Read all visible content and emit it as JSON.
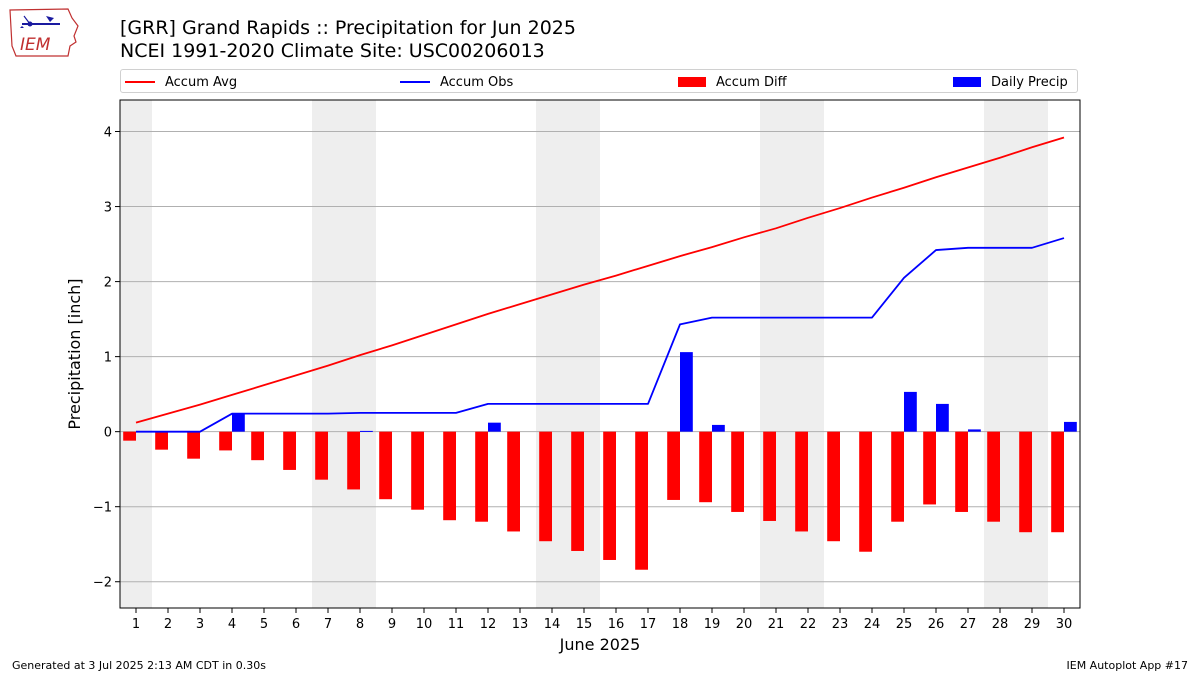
{
  "header": {
    "title": "[GRR] Grand Rapids :: Precipitation for Jun 2025",
    "subtitle": "NCEI 1991-2020 Climate Site: USC00206013"
  },
  "logo": {
    "text": "IEM",
    "icon": "iem-iowa-logo"
  },
  "footer": {
    "generated": "Generated at 3 Jul 2025 2:13 AM CDT in 0.30s",
    "app": "IEM Autoplot App #17"
  },
  "colors": {
    "avg": "#ff0000",
    "obs": "#0000ff",
    "diff": "#ff0000",
    "daily": "#0000ff",
    "weekend_shade": "#eeeeee",
    "grid": "#b0b0b0"
  },
  "chart_data": {
    "type": "bar",
    "xlabel": "June 2025",
    "ylabel": "Precipitation [inch]",
    "xlim": [
      0.5,
      30.5
    ],
    "ylim": [
      -2.35,
      4.42
    ],
    "yticks": [
      -2,
      -1,
      0,
      1,
      2,
      3,
      4
    ],
    "ytick_labels": [
      "−2",
      "−1",
      "0",
      "1",
      "2",
      "3",
      "4"
    ],
    "grid": true,
    "legend_position": "top",
    "days": [
      1,
      2,
      3,
      4,
      5,
      6,
      7,
      8,
      9,
      10,
      11,
      12,
      13,
      14,
      15,
      16,
      17,
      18,
      19,
      20,
      21,
      22,
      23,
      24,
      25,
      26,
      27,
      28,
      29,
      30
    ],
    "weekend_days": [
      1,
      7,
      8,
      14,
      15,
      21,
      22,
      28,
      29
    ],
    "legend": [
      "Accum Avg",
      "Accum Obs",
      "Accum Diff",
      "Daily Precip"
    ],
    "series": [
      {
        "name": "Accum Avg",
        "type": "line",
        "values": [
          0.12,
          0.24,
          0.36,
          0.49,
          0.62,
          0.75,
          0.88,
          1.02,
          1.15,
          1.29,
          1.43,
          1.57,
          1.7,
          1.83,
          1.96,
          2.08,
          2.21,
          2.34,
          2.46,
          2.59,
          2.71,
          2.85,
          2.98,
          3.12,
          3.25,
          3.39,
          3.52,
          3.65,
          3.79,
          3.92
        ]
      },
      {
        "name": "Accum Obs",
        "type": "line",
        "values": [
          0.0,
          0.0,
          0.0,
          0.24,
          0.24,
          0.24,
          0.24,
          0.25,
          0.25,
          0.25,
          0.25,
          0.37,
          0.37,
          0.37,
          0.37,
          0.37,
          0.37,
          1.43,
          1.52,
          1.52,
          1.52,
          1.52,
          1.52,
          1.52,
          2.05,
          2.42,
          2.45,
          2.45,
          2.45,
          2.58
        ]
      },
      {
        "name": "Accum Diff",
        "type": "bar",
        "values": [
          -0.12,
          -0.24,
          -0.36,
          -0.25,
          -0.38,
          -0.51,
          -0.64,
          -0.77,
          -0.9,
          -1.04,
          -1.18,
          -1.2,
          -1.33,
          -1.46,
          -1.59,
          -1.71,
          -1.84,
          -0.91,
          -0.94,
          -1.07,
          -1.19,
          -1.33,
          -1.46,
          -1.6,
          -1.2,
          -0.97,
          -1.07,
          -1.2,
          -1.34,
          -1.34
        ]
      },
      {
        "name": "Daily Precip",
        "type": "bar",
        "values": [
          0.0,
          0.0,
          0.0,
          0.24,
          0.0,
          0.0,
          0.0,
          0.01,
          0.0,
          0.0,
          0.0,
          0.12,
          0.0,
          0.0,
          0.0,
          0.0,
          0.0,
          1.06,
          0.09,
          0.0,
          0.0,
          0.0,
          0.0,
          0.0,
          0.53,
          0.37,
          0.03,
          0.0,
          0.0,
          0.13
        ]
      }
    ]
  }
}
